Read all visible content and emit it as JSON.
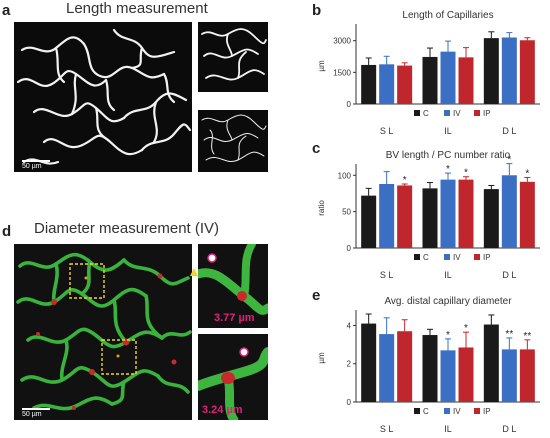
{
  "panel_a": {
    "letter": "a",
    "title": "Length measurement",
    "scale_bar": "50 µm"
  },
  "panel_d": {
    "letter": "d",
    "title": "Diameter measurement (IV)",
    "scale_bar": "50 µm",
    "diameter_1": "3.77 µm",
    "diameter_2": "3.24 µm"
  },
  "colors": {
    "C": "#1a1a1a",
    "IV": "#3a6fc4",
    "IP": "#c0272d"
  },
  "chart_data": [
    {
      "panel": "b",
      "type": "bar",
      "title": "Length of Capillaries",
      "ylabel": "µm",
      "ylim": [
        0,
        3600
      ],
      "yticks": [
        0,
        1500,
        3000
      ],
      "groups": [
        "S L",
        "IL",
        "D L"
      ],
      "series": [
        {
          "name": "C",
          "values": [
            1850,
            2230,
            3120
          ],
          "errors": [
            330,
            420,
            300
          ]
        },
        {
          "name": "IV",
          "values": [
            1880,
            2480,
            3150
          ],
          "errors": [
            380,
            500,
            230
          ]
        },
        {
          "name": "IP",
          "values": [
            1820,
            2210,
            3020
          ],
          "errors": [
            130,
            460,
            120
          ]
        }
      ],
      "sig": [
        [
          "",
          "",
          ""
        ],
        [
          "",
          "",
          ""
        ],
        [
          "",
          "",
          ""
        ]
      ],
      "legend": [
        "C",
        "IV",
        "IP"
      ]
    },
    {
      "panel": "c",
      "type": "bar",
      "title": "BV length / PC number ratio",
      "ylabel": "ratio",
      "ylim": [
        0,
        110
      ],
      "yticks": [
        0,
        50,
        100
      ],
      "groups": [
        "S L",
        "IL",
        "D L"
      ],
      "series": [
        {
          "name": "C",
          "values": [
            72,
            82,
            81
          ],
          "errors": [
            10,
            8,
            5
          ]
        },
        {
          "name": "IV",
          "values": [
            88,
            94,
            100
          ],
          "errors": [
            17,
            9,
            16
          ]
        },
        {
          "name": "IP",
          "values": [
            86,
            94,
            91
          ],
          "errors": [
            2,
            4,
            6
          ]
        }
      ],
      "sig": [
        [
          "",
          "",
          ""
        ],
        [
          "",
          "*",
          "*"
        ],
        [
          "*",
          "*",
          "*"
        ]
      ],
      "legend": [
        "C",
        "IV",
        "IP"
      ]
    },
    {
      "panel": "e",
      "type": "bar",
      "title": "Avg. distal capillary diameter",
      "ylabel": "µm",
      "ylim": [
        0,
        4.6
      ],
      "yticks": [
        0,
        2,
        4
      ],
      "groups": [
        "S L",
        "IL",
        "D L"
      ],
      "series": [
        {
          "name": "C",
          "values": [
            4.1,
            3.5,
            4.05
          ],
          "errors": [
            0.5,
            0.3,
            0.5
          ]
        },
        {
          "name": "IV",
          "values": [
            3.55,
            2.7,
            2.75
          ],
          "errors": [
            0.85,
            0.6,
            0.6
          ]
        },
        {
          "name": "IP",
          "values": [
            3.7,
            2.85,
            2.75
          ],
          "errors": [
            0.6,
            0.8,
            0.5
          ]
        }
      ],
      "sig": [
        [
          "",
          "",
          ""
        ],
        [
          "",
          "*",
          "**"
        ],
        [
          "",
          "*",
          "**"
        ]
      ],
      "legend": [
        "C",
        "IV",
        "IP"
      ]
    }
  ]
}
